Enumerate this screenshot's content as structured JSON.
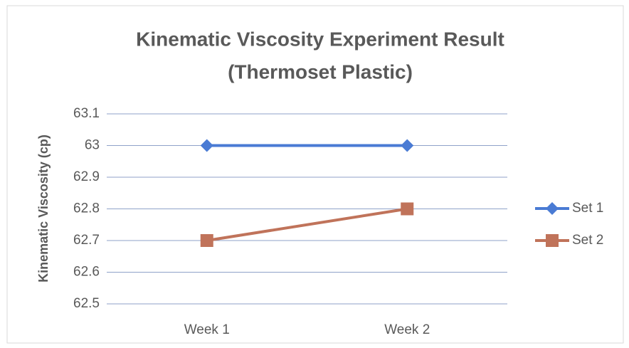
{
  "chart_data": {
    "type": "line",
    "title": [
      "Kinematic Viscosity Experiment Result",
      "(Thermoset Plastic)"
    ],
    "y_label": "Kinematic Viscosity (cp)",
    "categories": [
      "Week 1",
      "Week 2"
    ],
    "series": [
      {
        "name": "Set 1",
        "color": "#4a7bd4",
        "marker": "diamond",
        "values": [
          63,
          63
        ]
      },
      {
        "name": "Set 2",
        "color": "#c0735a",
        "marker": "square",
        "values": [
          62.7,
          62.8
        ]
      }
    ],
    "ylim": [
      62.5,
      63.1
    ],
    "yticks": [
      62.5,
      62.6,
      62.7,
      62.8,
      62.9,
      63,
      63.1
    ],
    "grid": true,
    "legend": "right"
  }
}
